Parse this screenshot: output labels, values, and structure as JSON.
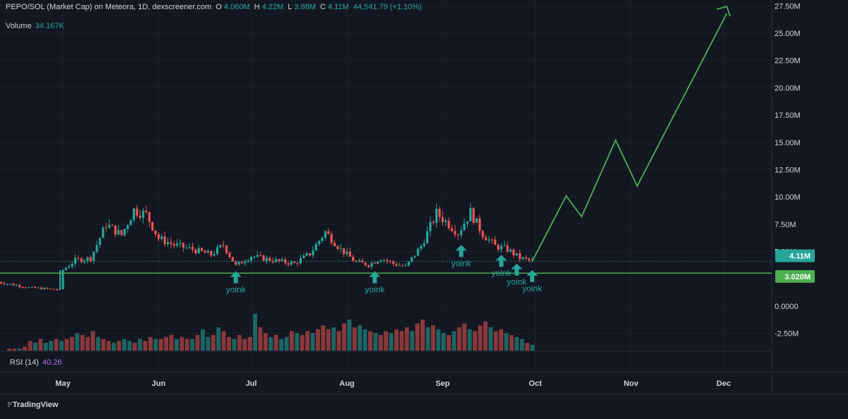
{
  "header": {
    "title": "PEPO/SOL (Market Cap) on Meteora, 1D, dexscreener.com",
    "open_label": "O",
    "open": "4.060M",
    "high_label": "H",
    "high": "4.22M",
    "low_label": "L",
    "low": "3.88M",
    "close_label": "C",
    "close": "4.11M",
    "change": "44,541.79 (+1.10%)",
    "volume_label": "Volume",
    "volume": "34.167K",
    "rsi_label": "RSI (14)",
    "rsi": "40.26"
  },
  "colors": {
    "background": "#131722",
    "up": "#26a69a",
    "down": "#ef5350",
    "support_line": "#4caf50",
    "projection": "#4caf50",
    "annotation": "#26a69a",
    "current_price_badge": "#26a69a",
    "support_badge": "#4caf50",
    "rsi": "#b070e0"
  },
  "brand": "TradingView",
  "chart_data": {
    "type": "candlestick",
    "x_axis": {
      "type": "time",
      "ticks": [
        "May",
        "Jun",
        "Jul",
        "Aug",
        "Sep",
        "Oct",
        "Nov",
        "Dec"
      ]
    },
    "y_axis": {
      "unit": "M",
      "ticks": [
        "-2.50M",
        "0.0000",
        "5.00M",
        "7.50M",
        "10.00M",
        "12.50M",
        "15.00M",
        "17.50M",
        "20.00M",
        "22.50M",
        "25.00M",
        "27.50M"
      ],
      "ylim": [
        -4,
        27.5
      ]
    },
    "current_price": {
      "value": 4.11,
      "label": "4.11M"
    },
    "support_level": {
      "value": 3.02,
      "label": "3.020M"
    },
    "series_close_approx": [
      {
        "date": "2024-04-10",
        "close": 2.2
      },
      {
        "date": "2024-04-20",
        "close": 1.7
      },
      {
        "date": "2024-04-30",
        "close": 1.5
      },
      {
        "date": "2024-05-01",
        "close": 3.3
      },
      {
        "date": "2024-05-05",
        "close": 4.2
      },
      {
        "date": "2024-05-10",
        "close": 4.4
      },
      {
        "date": "2024-05-15",
        "close": 7.5
      },
      {
        "date": "2024-05-20",
        "close": 6.5
      },
      {
        "date": "2024-05-24",
        "close": 8.8
      },
      {
        "date": "2024-05-28",
        "close": 8.4
      },
      {
        "date": "2024-06-01",
        "close": 6.2
      },
      {
        "date": "2024-06-06",
        "close": 5.6
      },
      {
        "date": "2024-06-12",
        "close": 5.2
      },
      {
        "date": "2024-06-18",
        "close": 4.7
      },
      {
        "date": "2024-06-22",
        "close": 5.6
      },
      {
        "date": "2024-06-26",
        "close": 3.7
      },
      {
        "date": "2024-07-01",
        "close": 4.6
      },
      {
        "date": "2024-07-06",
        "close": 4.3
      },
      {
        "date": "2024-07-10",
        "close": 4.1
      },
      {
        "date": "2024-07-15",
        "close": 3.9
      },
      {
        "date": "2024-07-20",
        "close": 4.8
      },
      {
        "date": "2024-07-25",
        "close": 6.8
      },
      {
        "date": "2024-07-30",
        "close": 5.2
      },
      {
        "date": "2024-08-04",
        "close": 4.0
      },
      {
        "date": "2024-08-08",
        "close": 3.8
      },
      {
        "date": "2024-08-12",
        "close": 4.4
      },
      {
        "date": "2024-08-16",
        "close": 3.9
      },
      {
        "date": "2024-08-20",
        "close": 3.6
      },
      {
        "date": "2024-08-25",
        "close": 5.5
      },
      {
        "date": "2024-08-30",
        "close": 8.5
      },
      {
        "date": "2024-09-03",
        "close": 7.5
      },
      {
        "date": "2024-09-06",
        "close": 6.7
      },
      {
        "date": "2024-09-10",
        "close": 8.6
      },
      {
        "date": "2024-09-14",
        "close": 6.6
      },
      {
        "date": "2024-09-18",
        "close": 5.5
      },
      {
        "date": "2024-09-22",
        "close": 5.2
      },
      {
        "date": "2024-09-26",
        "close": 4.4
      },
      {
        "date": "2024-09-30",
        "close": 4.11
      }
    ],
    "volume_series": {
      "name": "Volume",
      "values_relative": [
        0.05,
        0.05,
        0.05,
        0.1,
        0.25,
        0.2,
        0.3,
        0.2,
        0.25,
        0.3,
        0.25,
        0.3,
        0.35,
        0.45,
        0.4,
        0.35,
        0.5,
        0.35,
        0.3,
        0.25,
        0.2,
        0.25,
        0.3,
        0.25,
        0.2,
        0.3,
        0.25,
        0.35,
        0.3,
        0.3,
        0.35,
        0.4,
        0.3,
        0.35,
        0.3,
        0.3,
        0.4,
        0.55,
        0.35,
        0.4,
        0.6,
        0.5,
        0.35,
        0.3,
        0.4,
        0.3,
        0.35,
        0.95,
        0.6,
        0.45,
        0.35,
        0.4,
        0.3,
        0.35,
        0.5,
        0.45,
        0.4,
        0.5,
        0.45,
        0.55,
        0.65,
        0.55,
        0.6,
        0.5,
        0.7,
        0.8,
        0.6,
        0.65,
        0.55,
        0.5,
        0.45,
        0.4,
        0.5,
        0.45,
        0.55,
        0.5,
        0.6,
        0.5,
        0.7,
        0.8,
        0.6,
        0.65,
        0.55,
        0.45,
        0.4,
        0.5,
        0.6,
        0.7,
        0.55,
        0.5,
        0.65,
        0.75,
        0.6,
        0.5,
        0.55,
        0.45,
        0.4,
        0.35,
        0.3,
        0.2,
        0.15
      ]
    },
    "rsi": {
      "period": 14,
      "value": 40.26
    },
    "projection_path": [
      {
        "date": "2024-09-30",
        "value": 4.11
      },
      {
        "date": "2024-10-11",
        "value": 10.1
      },
      {
        "date": "2024-10-16",
        "value": 8.2
      },
      {
        "date": "2024-10-27",
        "value": 15.2
      },
      {
        "date": "2024-11-03",
        "value": 11.0
      },
      {
        "date": "2024-12-02",
        "value": 26.8
      }
    ],
    "annotations": [
      {
        "text": "yoink",
        "date": "2024-06-26",
        "value": 3.2
      },
      {
        "text": "yoink",
        "date": "2024-08-10",
        "value": 3.2
      },
      {
        "text": "yoink",
        "date": "2024-09-07",
        "value": 5.6
      },
      {
        "text": "yoink",
        "date": "2024-09-20",
        "value": 4.7
      },
      {
        "text": "yoink",
        "date": "2024-09-25",
        "value": 3.9
      },
      {
        "text": "yoink",
        "date": "2024-09-30",
        "value": 3.3
      }
    ]
  }
}
